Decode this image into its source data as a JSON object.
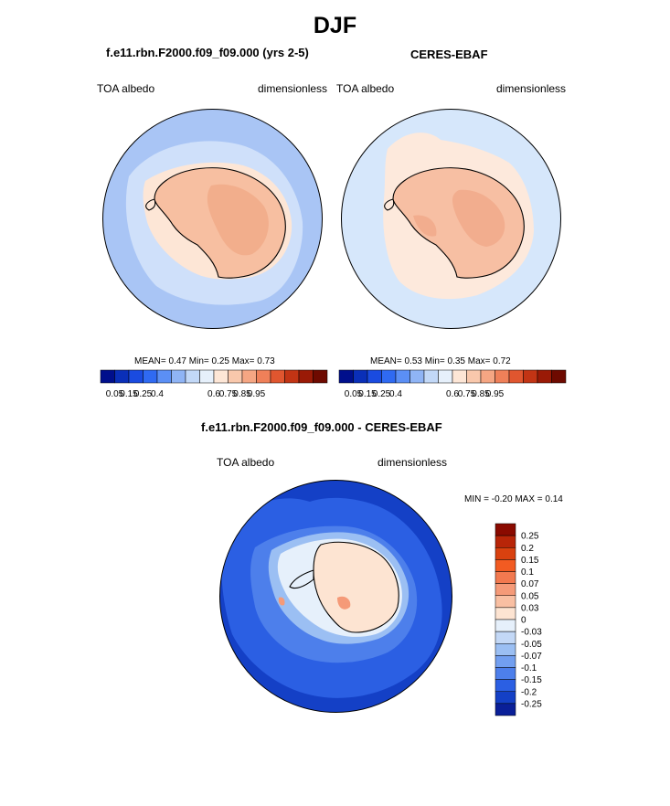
{
  "title": "DJF",
  "panels": {
    "model": {
      "title": "f.e11.rbn.F2000.f09_f09.000 (yrs 2-5)",
      "left_label": "TOA albedo",
      "right_label": "dimensionless",
      "stats": {
        "mean_label": "MEAN=",
        "mean": "0.47",
        "min_label": "Min=",
        "min": "0.25",
        "max_label": "Max=",
        "max": "0.73"
      }
    },
    "obs": {
      "title": "CERES-EBAF",
      "left_label": "TOA albedo",
      "right_label": "dimensionless",
      "stats": {
        "mean_label": "MEAN=",
        "mean": "0.53",
        "min_label": "Min=",
        "min": "0.35",
        "max_label": "Max=",
        "max": "0.72"
      }
    },
    "diff": {
      "title": "f.e11.rbn.F2000.f09_f09.000 - CERES-EBAF",
      "left_label": "TOA albedo",
      "right_label": "dimensionless",
      "stats": {
        "min_label": "MIN =",
        "min": "-0.20",
        "max_label": "MAX =",
        "max": "0.14"
      }
    }
  },
  "colorbars": {
    "horizontal": {
      "colors": [
        "#000f8c",
        "#0a2fb8",
        "#1a4be0",
        "#2f6af2",
        "#5b8ff5",
        "#8fb4f5",
        "#c2d8f7",
        "#e6f0fb",
        "#fde6d6",
        "#f9c8ac",
        "#f5a683",
        "#ef8059",
        "#e0562f",
        "#c23414",
        "#9a1a06",
        "#6e0a00"
      ],
      "tick_labels": [
        "0.05",
        "0.15",
        "0.25",
        "0.4",
        "0.6",
        "0.75",
        "0.85",
        "0.95"
      ]
    },
    "vertical": {
      "colors": [
        "#8a0a00",
        "#b82508",
        "#d9410f",
        "#f25b22",
        "#f2794f",
        "#f59a78",
        "#f9bfa2",
        "#fde4d2",
        "#e6f0fb",
        "#c3d8f6",
        "#9bbff3",
        "#729ff0",
        "#4d7feb",
        "#2b5fe3",
        "#1440c6",
        "#0a1f98"
      ],
      "tick_labels": [
        "0.25",
        "0.2",
        "0.15",
        "0.1",
        "0.07",
        "0.05",
        "0.03",
        "0",
        "-0.03",
        "-0.05",
        "-0.07",
        "-0.1",
        "-0.15",
        "-0.2",
        "-0.25"
      ]
    }
  },
  "map_colors": {
    "model_ocean": "#a9c5f5",
    "model_shelf": "#cfe0fa",
    "model_seaice": "#fde6d6",
    "model_land": "#f7bfa1",
    "model_land_dark": "#f2ae8c",
    "obs_ocean": "#d6e7fb",
    "obs_seaice": "#fde9dc",
    "obs_land": "#f7bfa3",
    "obs_land_dark": "#f2ad8e",
    "diff_deep": "#1440c6",
    "diff_mid": "#2b5fe3",
    "diff_light": "#4d7feb",
    "diff_pale": "#9bbff3",
    "diff_ice": "#e6f0fb",
    "diff_land": "#fde4d2",
    "diff_pos": "#f59a78",
    "coast": "#000000"
  }
}
